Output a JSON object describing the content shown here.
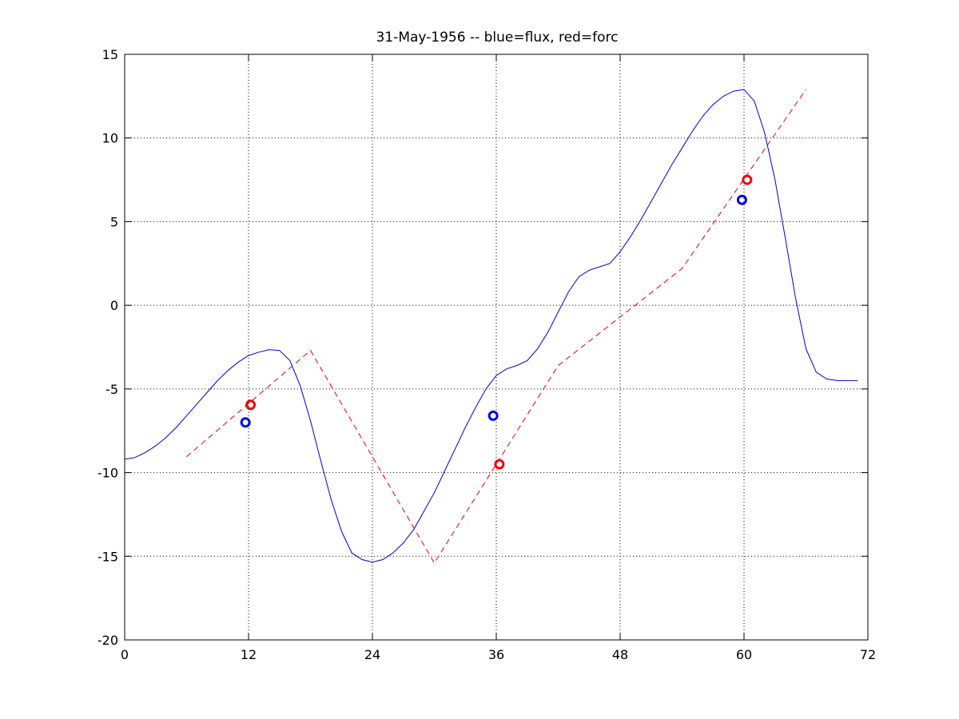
{
  "chart_data": {
    "type": "line",
    "title": "31-May-1956 -- blue=flux, red=forc",
    "xlabel": "",
    "ylabel": "",
    "xlim": [
      0,
      72
    ],
    "ylim": [
      -20,
      15
    ],
    "xticks": [
      0,
      12,
      24,
      36,
      48,
      60,
      72
    ],
    "yticks": [
      15,
      10,
      5,
      0,
      -5,
      -10,
      -15,
      -20
    ],
    "grid": true,
    "series": [
      {
        "color": "#0000cc",
        "style": "solid",
        "points": [
          [
            0,
            -9.2
          ],
          [
            1,
            -9.1
          ],
          [
            2,
            -8.8
          ],
          [
            3,
            -8.4
          ],
          [
            4,
            -7.9
          ],
          [
            5,
            -7.3
          ],
          [
            6,
            -6.6
          ],
          [
            7,
            -5.9
          ],
          [
            8,
            -5.2
          ],
          [
            9,
            -4.5
          ],
          [
            10,
            -3.9
          ],
          [
            11,
            -3.4
          ],
          [
            12,
            -3.0
          ],
          [
            13,
            -2.8
          ],
          [
            14,
            -2.65
          ],
          [
            15,
            -2.7
          ],
          [
            16,
            -3.3
          ],
          [
            17,
            -4.8
          ],
          [
            18,
            -6.9
          ],
          [
            19,
            -9.3
          ],
          [
            20,
            -11.6
          ],
          [
            21,
            -13.5
          ],
          [
            22,
            -14.8
          ],
          [
            23,
            -15.2
          ],
          [
            24,
            -15.35
          ],
          [
            25,
            -15.2
          ],
          [
            26,
            -14.8
          ],
          [
            27,
            -14.2
          ],
          [
            28,
            -13.4
          ],
          [
            29,
            -12.3
          ],
          [
            30,
            -11.2
          ],
          [
            31,
            -9.9
          ],
          [
            32,
            -8.6
          ],
          [
            33,
            -7.3
          ],
          [
            34,
            -6.1
          ],
          [
            35,
            -5.0
          ],
          [
            36,
            -4.2
          ],
          [
            37,
            -3.8
          ],
          [
            38,
            -3.6
          ],
          [
            39,
            -3.3
          ],
          [
            40,
            -2.6
          ],
          [
            41,
            -1.6
          ],
          [
            42,
            -0.4
          ],
          [
            43,
            0.8
          ],
          [
            44,
            1.7
          ],
          [
            45,
            2.1
          ],
          [
            46,
            2.3
          ],
          [
            47,
            2.5
          ],
          [
            48,
            3.2
          ],
          [
            49,
            4.1
          ],
          [
            50,
            5.1
          ],
          [
            51,
            6.2
          ],
          [
            52,
            7.3
          ],
          [
            53,
            8.4
          ],
          [
            54,
            9.4
          ],
          [
            55,
            10.4
          ],
          [
            56,
            11.3
          ],
          [
            57,
            12.0
          ],
          [
            58,
            12.5
          ],
          [
            59,
            12.8
          ],
          [
            60,
            12.9
          ],
          [
            61,
            12.2
          ],
          [
            62,
            10.3
          ],
          [
            63,
            7.5
          ],
          [
            64,
            4.0
          ],
          [
            65,
            0.4
          ],
          [
            66,
            -2.6
          ],
          [
            67,
            -4.0
          ],
          [
            68,
            -4.4
          ],
          [
            69,
            -4.5
          ],
          [
            70,
            -4.5
          ],
          [
            71,
            -4.5
          ]
        ]
      },
      {
        "color": "#dd0000",
        "style": "dashed",
        "points": [
          [
            6,
            -9.05
          ],
          [
            18,
            -2.7
          ],
          [
            30,
            -15.4
          ],
          [
            42,
            -3.6
          ],
          [
            54,
            2.2
          ],
          [
            66,
            12.9
          ]
        ]
      }
    ],
    "markers": [
      {
        "color": "#0000ee",
        "x": 11.7,
        "y": -7.0
      },
      {
        "color": "#ee0000",
        "x": 12.2,
        "y": -5.95
      },
      {
        "color": "#0000ee",
        "x": 35.7,
        "y": -6.6
      },
      {
        "color": "#ee0000",
        "x": 36.3,
        "y": -9.5
      },
      {
        "color": "#0000ee",
        "x": 59.8,
        "y": 6.3
      },
      {
        "color": "#ee0000",
        "x": 60.3,
        "y": 7.5
      }
    ]
  }
}
